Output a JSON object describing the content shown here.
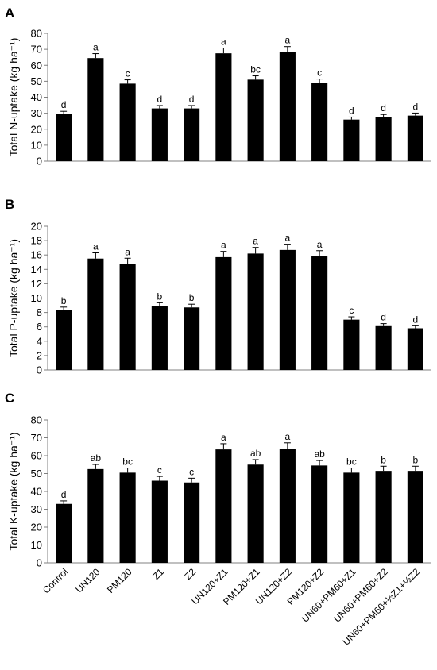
{
  "chart_data": [
    {
      "type": "bar",
      "panel": "A",
      "ylabel": "Total N-uptake (kg ha⁻¹)",
      "ylim": [
        0,
        80
      ],
      "yticks": [
        0,
        10,
        20,
        30,
        40,
        50,
        60,
        70,
        80
      ],
      "categories": [
        "Control",
        "UN120",
        "PM120",
        "Z1",
        "Z2",
        "UN120+Z1",
        "PM120+Z1",
        "UN120+Z2",
        "PM120+Z2",
        "UN60+PM60+Z1",
        "UN60+PM60+Z2",
        "UN60+PM60+½Z1+½Z2"
      ],
      "values": [
        29.5,
        64.5,
        48.5,
        33,
        33,
        67.5,
        51,
        68.5,
        49,
        26,
        27.5,
        28.5
      ],
      "errors": [
        1.7,
        2.8,
        2.4,
        1.8,
        1.8,
        3.3,
        2.4,
        3.2,
        2.4,
        1.6,
        1.7,
        1.6
      ],
      "letters": [
        "d",
        "a",
        "c",
        "d",
        "d",
        "a",
        "bc",
        "a",
        "c",
        "d",
        "d",
        "d"
      ],
      "bar_color": "#000000",
      "grid": false
    },
    {
      "type": "bar",
      "panel": "B",
      "ylabel": "Total P-uptake (kg ha⁻¹)",
      "ylim": [
        0,
        20
      ],
      "yticks": [
        0,
        2,
        4,
        6,
        8,
        10,
        12,
        14,
        16,
        18,
        20
      ],
      "categories": [
        "Control",
        "UN120",
        "PM120",
        "Z1",
        "Z2",
        "UN120+Z1",
        "PM120+Z1",
        "UN120+Z2",
        "PM120+Z2",
        "UN60+PM60+Z1",
        "UN60+PM60+Z2",
        "UN60+PM60+½Z1+½Z2"
      ],
      "values": [
        8.3,
        15.5,
        14.8,
        8.9,
        8.7,
        15.7,
        16.2,
        16.7,
        15.8,
        7.0,
        6.1,
        5.8
      ],
      "errors": [
        0.45,
        0.8,
        0.75,
        0.45,
        0.45,
        0.8,
        0.85,
        0.8,
        0.8,
        0.4,
        0.35,
        0.35
      ],
      "letters": [
        "b",
        "a",
        "a",
        "b",
        "b",
        "a",
        "a",
        "a",
        "a",
        "c",
        "d",
        "d"
      ],
      "bar_color": "#000000",
      "grid": false
    },
    {
      "type": "bar",
      "panel": "C",
      "ylabel": "Total K-uptake (kg ha⁻¹)",
      "ylim": [
        0,
        80
      ],
      "yticks": [
        0,
        10,
        20,
        30,
        40,
        50,
        60,
        70,
        80
      ],
      "categories": [
        "Control",
        "UN120",
        "PM120",
        "Z1",
        "Z2",
        "UN120+Z1",
        "PM120+Z1",
        "UN120+Z2",
        "PM120+Z2",
        "UN60+PM60+Z1",
        "UN60+PM60+Z2",
        "UN60+PM60+½Z1+½Z2"
      ],
      "values": [
        33,
        52.5,
        50.5,
        46,
        45,
        63.5,
        55,
        64,
        54.5,
        50.5,
        51.5,
        51.5
      ],
      "errors": [
        1.7,
        2.6,
        2.6,
        2.4,
        2.4,
        3.2,
        2.8,
        3.2,
        2.8,
        2.6,
        2.6,
        2.6
      ],
      "letters": [
        "d",
        "ab",
        "bc",
        "c",
        "c",
        "a",
        "ab",
        "a",
        "ab",
        "bc",
        "b",
        "b"
      ],
      "bar_color": "#000000",
      "grid": false
    }
  ]
}
